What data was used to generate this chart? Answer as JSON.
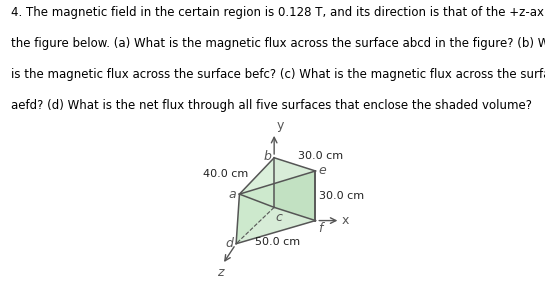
{
  "text_line1": "4. The magnetic field in the certain region is 0.128 T, and its direction is that of the +z-axis in",
  "text_line2": "the figure below. (a) What is the magnetic flux across the surface abcd in the figure? (b) What",
  "text_line3": "is the magnetic flux across the surface befc? (c) What is the magnetic flux across the surface",
  "text_line4": "aefd? (d) What is the net flux through all five surfaces that enclose the shaded volume?",
  "dim_30_top": "30.0 cm",
  "dim_40": "40.0 cm",
  "dim_30_right": "30.0 cm",
  "dim_50": "50.0 cm",
  "label_b": "b",
  "label_a": "a",
  "label_c": "c",
  "label_d": "d",
  "label_e": "e",
  "label_f": "f",
  "label_y": "y",
  "label_x": "x",
  "label_z": "z",
  "face_color_top": "#b8ddb8",
  "face_color_left": "#c8e8c8",
  "face_color_front": "#a8d5a8",
  "edge_color": "#555555",
  "bg_color": "#ffffff",
  "text_color": "#000000",
  "text_fontsize": 8.5
}
